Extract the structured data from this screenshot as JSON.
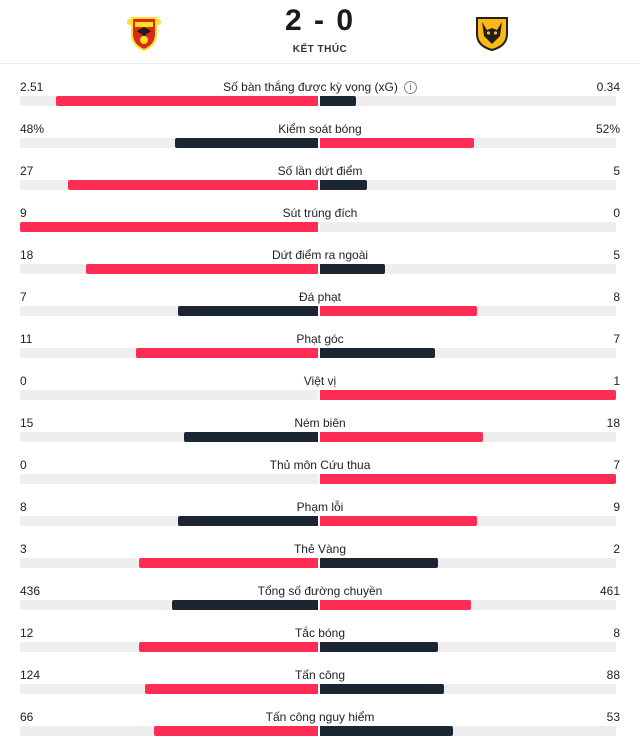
{
  "match": {
    "score": "2 - 0",
    "status": "KẾT THÚC",
    "home_crest": "manchester-united-crest",
    "away_crest": "wolverhampton-wanderers-crest"
  },
  "colors": {
    "leader": "#ff2d55",
    "trailer": "#1c2632",
    "track": "#eeeeee"
  },
  "stats": [
    {
      "label": "Số bàn thắng được kỳ vọng (xG)",
      "home": "2.51",
      "away": "0.34",
      "home_share": 0.88,
      "away_share": 0.12,
      "info": true
    },
    {
      "label": "Kiểm soát bóng",
      "home": "48%",
      "away": "52%",
      "home_share": 0.48,
      "away_share": 0.52
    },
    {
      "label": "Số lần dứt điểm",
      "home": "27",
      "away": "5",
      "home_share": 0.84,
      "away_share": 0.16
    },
    {
      "label": "Sút trúng đích",
      "home": "9",
      "away": "0",
      "home_share": 1.0,
      "away_share": 0.0
    },
    {
      "label": "Dứt điểm ra ngoài",
      "home": "18",
      "away": "5",
      "home_share": 0.78,
      "away_share": 0.22
    },
    {
      "label": "Đá phạt",
      "home": "7",
      "away": "8",
      "home_share": 0.47,
      "away_share": 0.53
    },
    {
      "label": "Phạt góc",
      "home": "11",
      "away": "7",
      "home_share": 0.61,
      "away_share": 0.39
    },
    {
      "label": "Việt vị",
      "home": "0",
      "away": "1",
      "home_share": 0.0,
      "away_share": 1.0
    },
    {
      "label": "Ném biên",
      "home": "15",
      "away": "18",
      "home_share": 0.45,
      "away_share": 0.55
    },
    {
      "label": "Thủ môn Cứu thua",
      "home": "0",
      "away": "7",
      "home_share": 0.0,
      "away_share": 1.0
    },
    {
      "label": "Phạm lỗi",
      "home": "8",
      "away": "9",
      "home_share": 0.47,
      "away_share": 0.53
    },
    {
      "label": "Thẻ Vàng",
      "home": "3",
      "away": "2",
      "home_share": 0.6,
      "away_share": 0.4
    },
    {
      "label": "Tổng số đường chuyền",
      "home": "436",
      "away": "461",
      "home_share": 0.49,
      "away_share": 0.51
    },
    {
      "label": "Tắc bóng",
      "home": "12",
      "away": "8",
      "home_share": 0.6,
      "away_share": 0.4
    },
    {
      "label": "Tấn công",
      "home": "124",
      "away": "88",
      "home_share": 0.58,
      "away_share": 0.42
    },
    {
      "label": "Tấn công nguy hiểm",
      "home": "66",
      "away": "53",
      "home_share": 0.55,
      "away_share": 0.45
    }
  ]
}
